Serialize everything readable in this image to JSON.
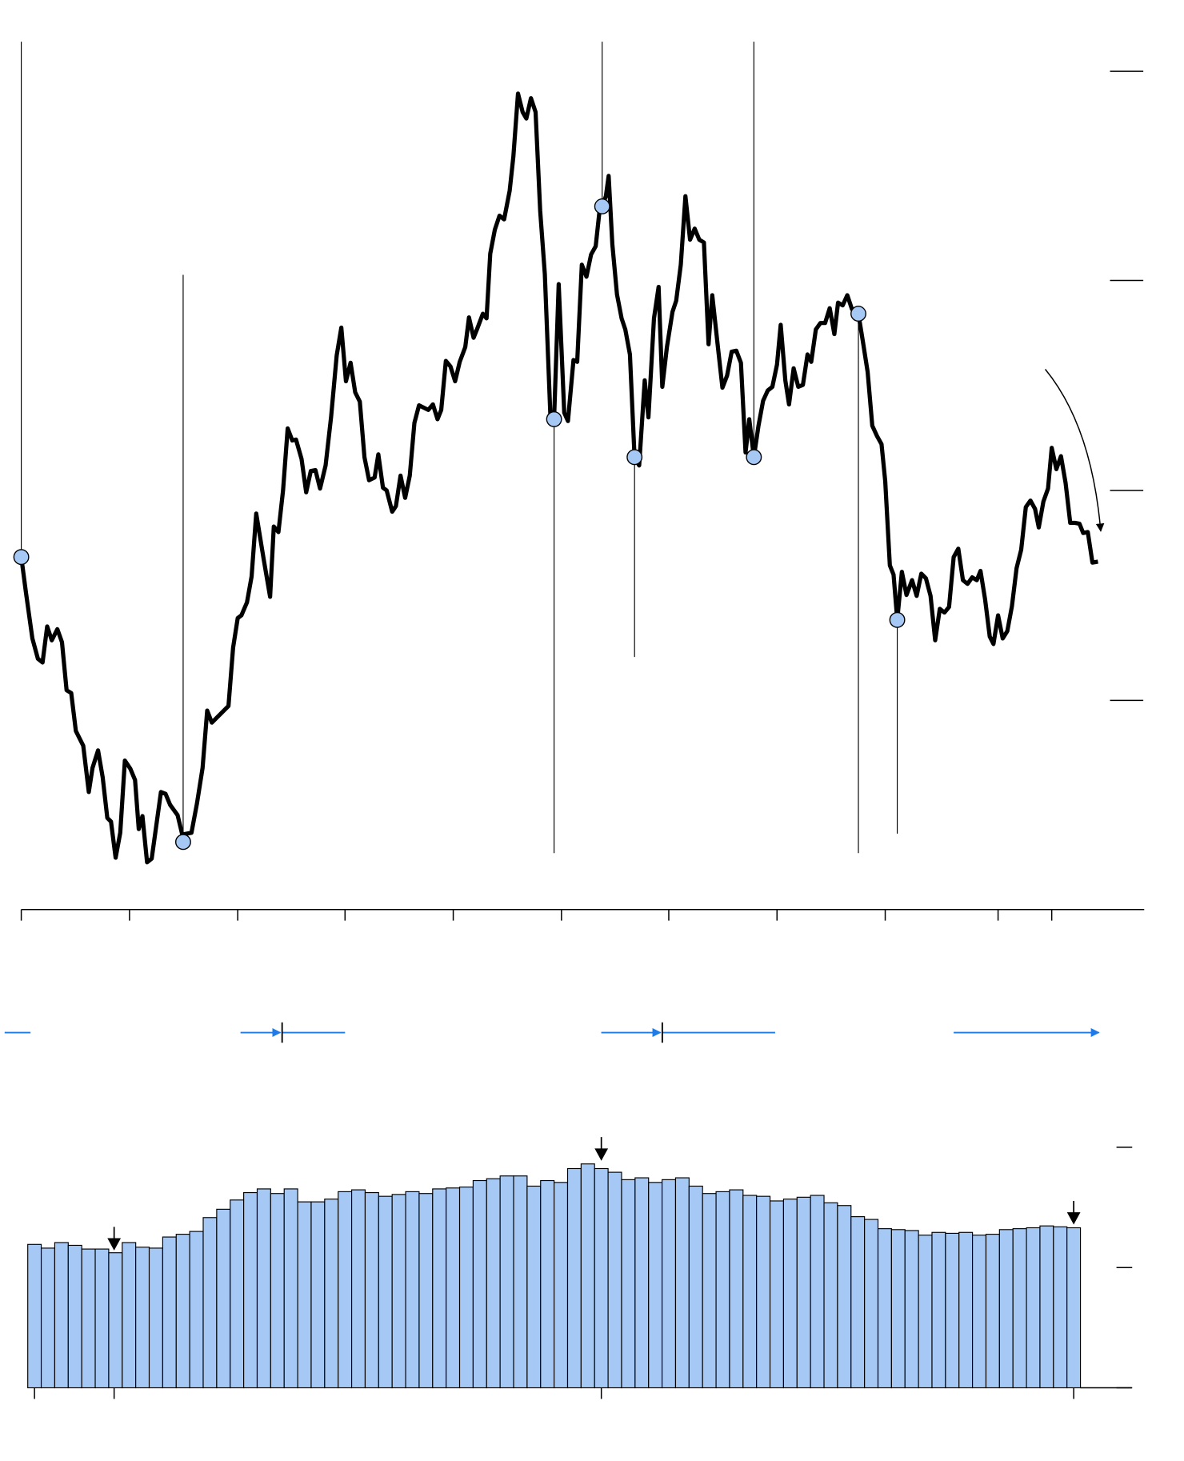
{
  "chart_data": [
    {
      "type": "line",
      "color": "#000000",
      "marker_color": "#a6c8f5",
      "xlim": [
        23,
        1237
      ],
      "xticks": [
        23,
        140,
        257,
        373,
        490,
        607,
        723,
        840,
        957,
        1079,
        1137
      ],
      "ylim": [
        0,
        953
      ],
      "yticks": [
        226,
        453,
        680,
        906
      ],
      "x": [
        23,
        28,
        35,
        41,
        46,
        51,
        56,
        62,
        67,
        72,
        77,
        82,
        90,
        96,
        100,
        106,
        111,
        116,
        120,
        125,
        130,
        135,
        141,
        146,
        150,
        154,
        159,
        164,
        174,
        179,
        184,
        192,
        197,
        207,
        213,
        219,
        224,
        229,
        247,
        252,
        257,
        261,
        267,
        272,
        277,
        285,
        292,
        296,
        301,
        306,
        311,
        316,
        320,
        326,
        331,
        336,
        341,
        346,
        352,
        358,
        364,
        369,
        374,
        379,
        384,
        389,
        394,
        399,
        405,
        409,
        414,
        418,
        424,
        428,
        433,
        438,
        443,
        448,
        453,
        463,
        468,
        473,
        477,
        482,
        487,
        492,
        497,
        503,
        507,
        512,
        516,
        522,
        526,
        530,
        535,
        540,
        545,
        551,
        555,
        560,
        565,
        569,
        574,
        579,
        584,
        589,
        595,
        599,
        604,
        610,
        614,
        620,
        624,
        629,
        634,
        639,
        644,
        648,
        651,
        655,
        658,
        662,
        667,
        672,
        676,
        681,
        686,
        691,
        697,
        701,
        707,
        712,
        716,
        721,
        727,
        731,
        736,
        741,
        746,
        751,
        756,
        761,
        766,
        770,
        776,
        781,
        786,
        791,
        796,
        801,
        806,
        810,
        815,
        820,
        825,
        830,
        835,
        840,
        844,
        849,
        853,
        858,
        863,
        868,
        873,
        877,
        882,
        887,
        892,
        897,
        902,
        906,
        911,
        916,
        921,
        928,
        933,
        938,
        943,
        948,
        953,
        957,
        962,
        966,
        970,
        975,
        980,
        986,
        991,
        996,
        1001,
        1006,
        1011,
        1016,
        1021,
        1026,
        1031,
        1036,
        1041,
        1046,
        1051,
        1056,
        1060,
        1065,
        1070,
        1074,
        1079,
        1084,
        1089,
        1094,
        1099,
        1104,
        1109,
        1114,
        1119,
        1123,
        1128,
        1133,
        1137,
        1142,
        1147,
        1152,
        1157,
        1162,
        1167,
        1171,
        1176,
        1181,
        1187
      ],
      "values": [
        381,
        343,
        293,
        271,
        267,
        306,
        291,
        303,
        289,
        237,
        234,
        193,
        177,
        127,
        153,
        172,
        143,
        99,
        95,
        56,
        83,
        161,
        152,
        140,
        87,
        101,
        51,
        55,
        127,
        125,
        113,
        102,
        81,
        83,
        115,
        153,
        215,
        202,
        220,
        283,
        315,
        318,
        332,
        360,
        428,
        379,
        338,
        414,
        408,
        453,
        520,
        507,
        508,
        487,
        451,
        474,
        475,
        455,
        480,
        533,
        599,
        629,
        571,
        591,
        559,
        549,
        489,
        464,
        467,
        492,
        456,
        453,
        430,
        436,
        469,
        445,
        469,
        526,
        545,
        540,
        546,
        530,
        540,
        593,
        587,
        571,
        592,
        608,
        640,
        618,
        628,
        644,
        639,
        709,
        735,
        750,
        746,
        777,
        814,
        882,
        862,
        855,
        877,
        862,
        755,
        687,
        534,
        530,
        676,
        537,
        528,
        594,
        592,
        697,
        684,
        708,
        717,
        754,
        760,
        771,
        793,
        719,
        665,
        639,
        627,
        600,
        489,
        480,
        572,
        532,
        639,
        673,
        565,
        608,
        646,
        658,
        697,
        771,
        724,
        736,
        724,
        721,
        611,
        664,
        609,
        564,
        577,
        603,
        604,
        591,
        494,
        530,
        489,
        523,
        550,
        561,
        565,
        589,
        632,
        572,
        546,
        585,
        565,
        567,
        600,
        592,
        627,
        634,
        634,
        650,
        622,
        656,
        653,
        664,
        649,
        644,
        613,
        581,
        523,
        512,
        503,
        463,
        372,
        362,
        313,
        365,
        340,
        356,
        339,
        363,
        358,
        339,
        291,
        325,
        321,
        327,
        381,
        390,
        356,
        352,
        359,
        356,
        366,
        335,
        295,
        287,
        318,
        293,
        301,
        328,
        369,
        389,
        435,
        442,
        433,
        413,
        441,
        455,
        499,
        476,
        490,
        461,
        418,
        418,
        417,
        407,
        408,
        375,
        376
      ],
      "events": [
        {
          "x": 23,
          "y": 381,
          "line_end": 938
        },
        {
          "x": 198,
          "y": 73,
          "line_end": 686
        },
        {
          "x": 599,
          "y": 530,
          "line_end": 61
        },
        {
          "x": 651,
          "y": 760,
          "line_end": 938
        },
        {
          "x": 686,
          "y": 489,
          "line_end": 273
        },
        {
          "x": 815,
          "y": 489,
          "line_end": 938
        },
        {
          "x": 928,
          "y": 644,
          "line_end": 61
        },
        {
          "x": 970,
          "y": 313,
          "line_end": 82
        }
      ]
    },
    {
      "type": "bar",
      "color": "#a6c8f5",
      "xlim": [
        0,
        81.8
      ],
      "xticks": [
        0.5,
        6.4,
        42.5,
        77.5
      ],
      "ylim": [
        0,
        270
      ],
      "yticks": [
        0,
        130,
        260
      ],
      "values": [
        155,
        151,
        157,
        154,
        150,
        150,
        146,
        157,
        152,
        151,
        163,
        166,
        169,
        184,
        193,
        203,
        211,
        215,
        210,
        215,
        201,
        201,
        204,
        212,
        214,
        211,
        207,
        209,
        212,
        210,
        215,
        216,
        217,
        224,
        226,
        229,
        229,
        218,
        224,
        222,
        237,
        242,
        237,
        233,
        225,
        227,
        222,
        225,
        227,
        218,
        210,
        212,
        214,
        208,
        207,
        202,
        204,
        206,
        208,
        200,
        197,
        185,
        182,
        172,
        171,
        170,
        165,
        168,
        167,
        168,
        165,
        166,
        171,
        172,
        173,
        175,
        174,
        173
      ],
      "arrows": [
        {
          "x": 6.4,
          "y": 150
        },
        {
          "x": 42.5,
          "y": 247
        },
        {
          "x": 77.5,
          "y": 178
        }
      ]
    }
  ]
}
